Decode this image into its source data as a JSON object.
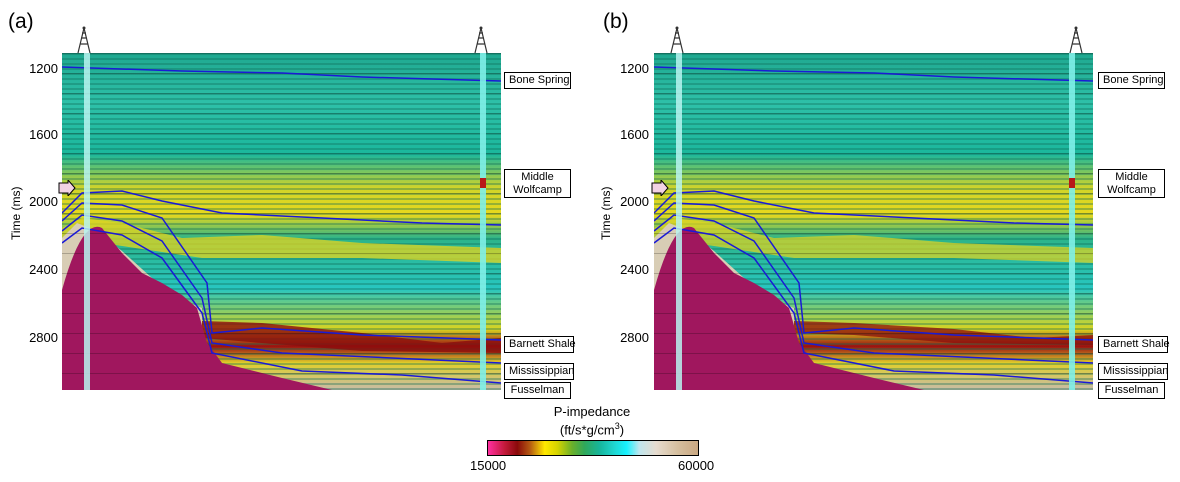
{
  "panels": [
    {
      "letter": "(a)"
    },
    {
      "letter": "(b)"
    }
  ],
  "y_axis": {
    "label": "Time (ms)",
    "ticks": [
      "1200",
      "1600",
      "2000",
      "2400",
      "2800"
    ]
  },
  "horizons": [
    "Bone Spring",
    "Middle Wolfcamp",
    "Barnett Shale",
    "Mississippian",
    "Fusselman"
  ],
  "colorbar": {
    "title": "P-impedance",
    "unit_base": "(ft/s*g/cm",
    "unit_sup": "3",
    "unit_close": ")",
    "min_label": "15000",
    "max_label": "60000"
  },
  "colors": {
    "basement": "#a0175e",
    "horizon_line": "#1a1ad6",
    "well_track": "#b8f4f0"
  },
  "icons": [
    "oil-derrick-icon",
    "arrow-marker-icon"
  ]
}
